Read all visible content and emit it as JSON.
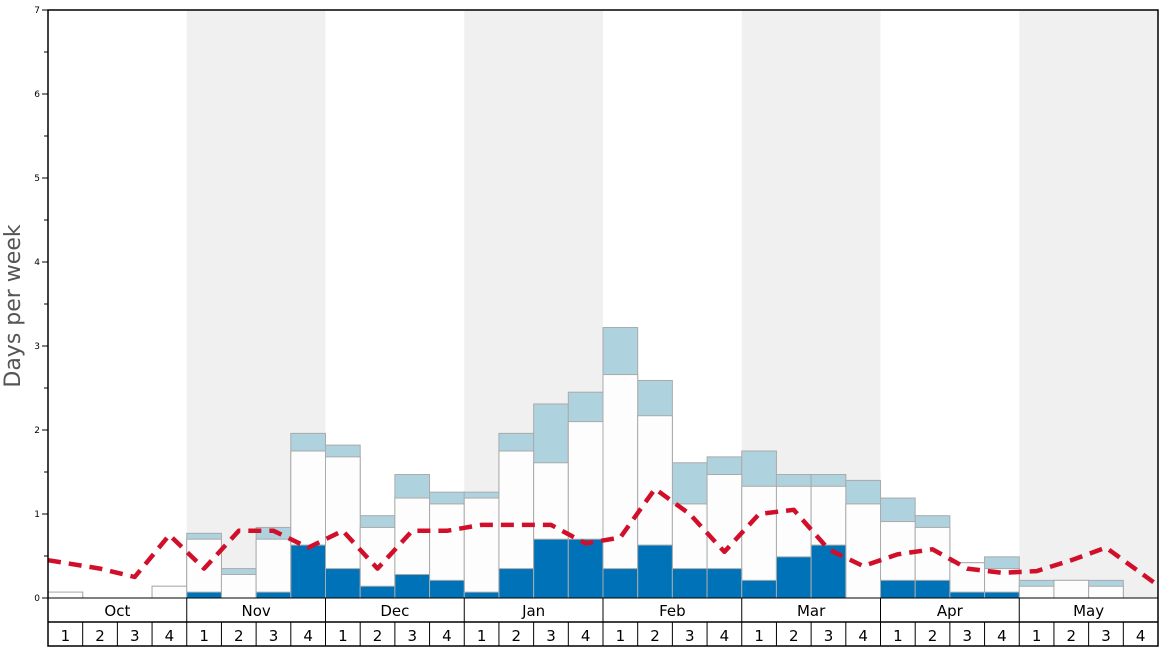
{
  "chart_data": {
    "type": "bar",
    "ylabel": "Days per week",
    "ylim": [
      0,
      7
    ],
    "yticks": [
      0,
      1,
      2,
      3,
      4,
      5,
      6,
      7
    ],
    "months": [
      "Oct",
      "Nov",
      "Dec",
      "Jan",
      "Feb",
      "Mar",
      "Apr",
      "May"
    ],
    "weeks": [
      "1",
      "2",
      "3",
      "4"
    ],
    "colors": {
      "shade": "#f0f0f0",
      "dark": "#0073b8",
      "light_blue": "#aed3df",
      "white_bar": "#fdfdfd",
      "bar_edge": "#aaaaaa",
      "dashed_line": "#d10f2a"
    },
    "series": [
      {
        "color": "#0073b8",
        "values": [
          0,
          0,
          0,
          0,
          0.07,
          0,
          0.07,
          0.63,
          0.35,
          0.14,
          0.28,
          0.21,
          0.07,
          0.35,
          0.7,
          0.7,
          0.35,
          0.63,
          0.35,
          0.35,
          0.21,
          0.49,
          0.63,
          0,
          0.21,
          0.21,
          0.07,
          0.07,
          0,
          0,
          0,
          0
        ]
      },
      {
        "color": "#fdfdfd",
        "values": [
          0.07,
          0,
          0,
          0.14,
          0.7,
          0.28,
          0.7,
          1.75,
          1.68,
          0.84,
          1.19,
          1.12,
          1.19,
          1.75,
          1.61,
          2.1,
          2.66,
          2.17,
          1.12,
          1.47,
          1.33,
          1.33,
          1.33,
          1.12,
          0.91,
          0.84,
          0.42,
          0.35,
          0.14,
          0.21,
          0.14,
          0
        ]
      },
      {
        "color": "#aed3df",
        "values": [
          0.07,
          0,
          0,
          0.14,
          0.77,
          0.35,
          0.84,
          1.96,
          1.82,
          0.98,
          1.47,
          1.26,
          1.26,
          1.96,
          2.31,
          2.45,
          3.22,
          2.59,
          1.61,
          1.68,
          1.75,
          1.47,
          1.47,
          1.4,
          1.19,
          0.98,
          0.42,
          0.49,
          0.21,
          0.21,
          0.21,
          0
        ]
      }
    ],
    "dashed_series": {
      "color": "#d10f2a",
      "values": [
        0.45,
        0.35,
        0.25,
        0.75,
        0.35,
        0.8,
        0.8,
        0.6,
        0.8,
        0.35,
        0.8,
        0.8,
        0.87,
        0.87,
        0.87,
        0.65,
        0.72,
        1.3,
        1.0,
        0.55,
        1.0,
        1.05,
        0.58,
        0.38,
        0.52,
        0.58,
        0.35,
        0.3,
        0.32,
        0.45,
        0.6,
        0.15
      ]
    }
  }
}
